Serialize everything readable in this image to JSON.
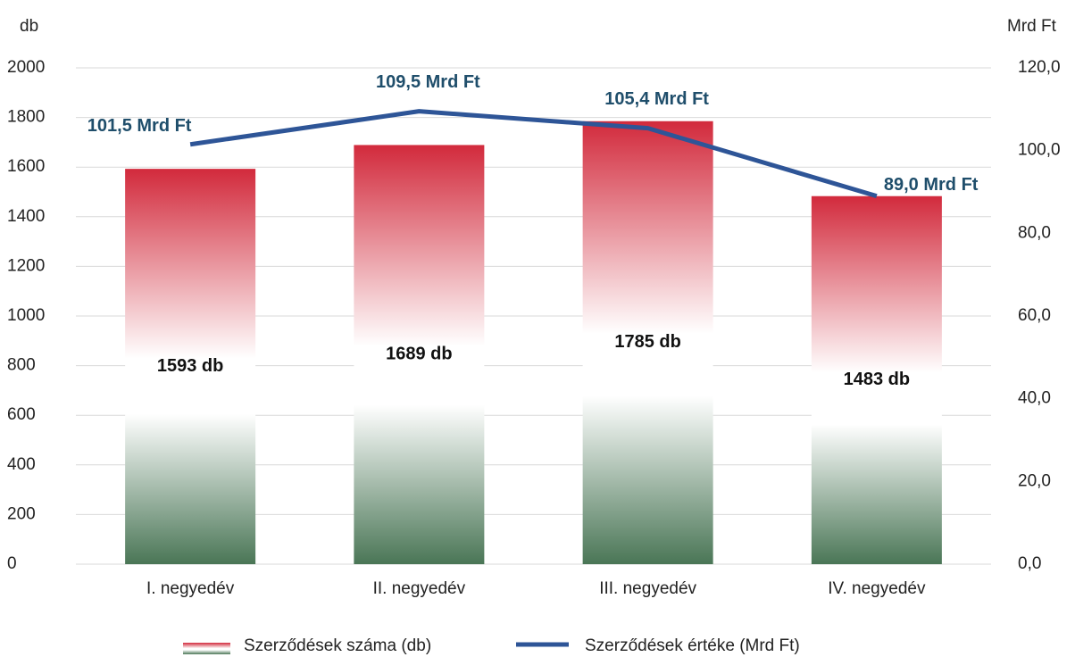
{
  "chart_data": {
    "type": "combo",
    "ylabel": "db",
    "y2label": "Mrd Ft",
    "categories": [
      "I. negyedév",
      "II. negyedév",
      "III. negyedév",
      "IV. negyedév"
    ],
    "series": [
      {
        "name": "Szerződések száma (db)",
        "type": "bar",
        "gradient": [
          "#d22a3c",
          "#ffffff",
          "#ffffff",
          "#4a7656"
        ],
        "values": [
          1593,
          1689,
          1785,
          1483
        ],
        "value_labels": [
          "1593 db",
          "1689 db",
          "1785 db",
          "1483 db"
        ]
      },
      {
        "name": "Szerződések értéke (Mrd Ft)",
        "type": "line",
        "axis": "y2",
        "color": "#2e5597",
        "values": [
          101.5,
          109.5,
          105.4,
          89.0
        ],
        "value_labels": [
          "101,5 Mrd Ft",
          "109,5 Mrd Ft",
          "105,4 Mrd Ft",
          "89,0 Mrd Ft"
        ]
      }
    ],
    "ylim": [
      0,
      2000
    ],
    "yticks": [
      0,
      200,
      400,
      600,
      800,
      1000,
      1200,
      1400,
      1600,
      1800,
      2000
    ],
    "y2lim": [
      0,
      120
    ],
    "y2ticks": [
      {
        "value": 0,
        "label": "0,0"
      },
      {
        "value": 20,
        "label": "20,0"
      },
      {
        "value": 40,
        "label": "40,0"
      },
      {
        "value": 60,
        "label": "60,0"
      },
      {
        "value": 80,
        "label": "80,0"
      },
      {
        "value": 100,
        "label": "100,0"
      },
      {
        "value": 120,
        "label": "120,0"
      }
    ],
    "grid": true
  }
}
